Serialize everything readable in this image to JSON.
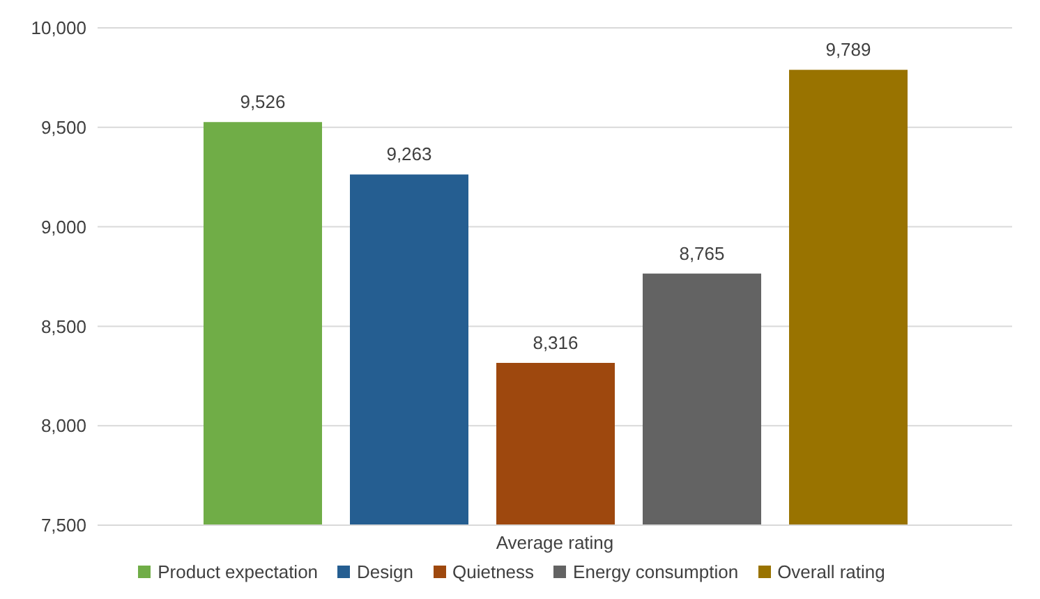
{
  "chart_data": {
    "type": "bar",
    "categories": [
      "Average rating"
    ],
    "series": [
      {
        "name": "Product expectation",
        "color": "#70ad47",
        "values": [
          9526
        ],
        "value_labels": [
          "9,526"
        ]
      },
      {
        "name": "Design",
        "color": "#255e91",
        "values": [
          9263
        ],
        "value_labels": [
          "9,263"
        ]
      },
      {
        "name": "Quietness",
        "color": "#9e480e",
        "values": [
          8316
        ],
        "value_labels": [
          "8,316"
        ]
      },
      {
        "name": "Energy consumption",
        "color": "#636363",
        "values": [
          8765
        ],
        "value_labels": [
          "8,765"
        ]
      },
      {
        "name": "Overall rating",
        "color": "#997300",
        "values": [
          9789
        ],
        "value_labels": [
          "9,789"
        ]
      }
    ],
    "ylim": [
      7500,
      10000
    ],
    "yticks": [
      {
        "value": 7500,
        "label": "7,500"
      },
      {
        "value": 8000,
        "label": "8,000"
      },
      {
        "value": 8500,
        "label": "8,500"
      },
      {
        "value": 9000,
        "label": "9,000"
      },
      {
        "value": 9500,
        "label": "9,500"
      },
      {
        "value": 10000,
        "label": "10,000"
      }
    ],
    "grid": "y",
    "legend": "bottom"
  }
}
